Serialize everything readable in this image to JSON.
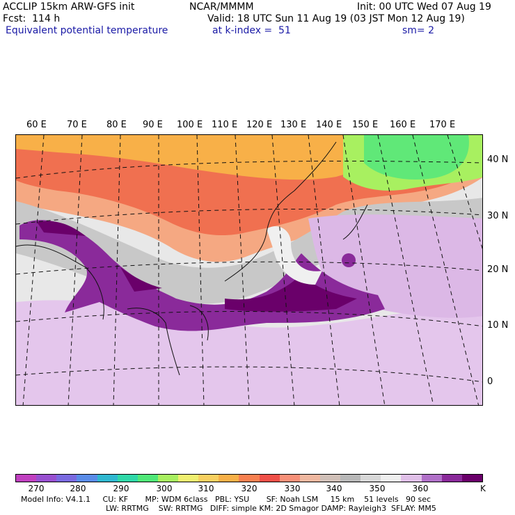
{
  "header": {
    "model": "ACCLIP 15km ARW-GFS init",
    "org": "NCAR/MMMM",
    "init": "Init: 00 UTC Wed 07 Aug 19",
    "fcst": "Fcst:  114 h",
    "valid": "Valid: 18 UTC Sun 11 Aug 19 (03 JST Mon 12 Aug 19)",
    "field": "Equivalent potential temperature",
    "level": "at k-index =  51",
    "smooth": "sm= 2"
  },
  "map": {
    "lon_labels": [
      "60 E",
      "70 E",
      "80 E",
      "90 E",
      "100 E",
      "110 E",
      "120 E",
      "130 E",
      "140 E",
      "150 E",
      "160 E",
      "170 E"
    ],
    "lat_labels": [
      "40 N",
      "30 N",
      "20 N",
      "10 N",
      "0"
    ]
  },
  "colorbar": {
    "colors": [
      "#c040c0",
      "#9850d0",
      "#7a6ae0",
      "#5a8ce8",
      "#30b8d0",
      "#30d8a8",
      "#50e878",
      "#a8f060",
      "#f0f070",
      "#f8d060",
      "#f8b048",
      "#f88050",
      "#f05048",
      "#f89078",
      "#f0b8a0",
      "#d0c0b8",
      "#b8b8b8",
      "#d8d8d8",
      "#f0f0f0",
      "#e0c0e8",
      "#b070c8",
      "#8a2a9a",
      "#6a006a"
    ],
    "ticks": [
      "270",
      "280",
      "290",
      "300",
      "310",
      "320",
      "330",
      "340",
      "350",
      "360"
    ],
    "unit": "K"
  },
  "footer": {
    "line1": "Model Info: V4.1.1     CU: KF       MP: WDM 6class   PBL: YSU       SF: Noah LSM     15 km    51 levels   90 sec",
    "line2": "LW: RRTMG    SW: RRTMG   DIFF: simple KM: 2D Smagor DAMP: Rayleigh3  SFLAY: MM5"
  }
}
